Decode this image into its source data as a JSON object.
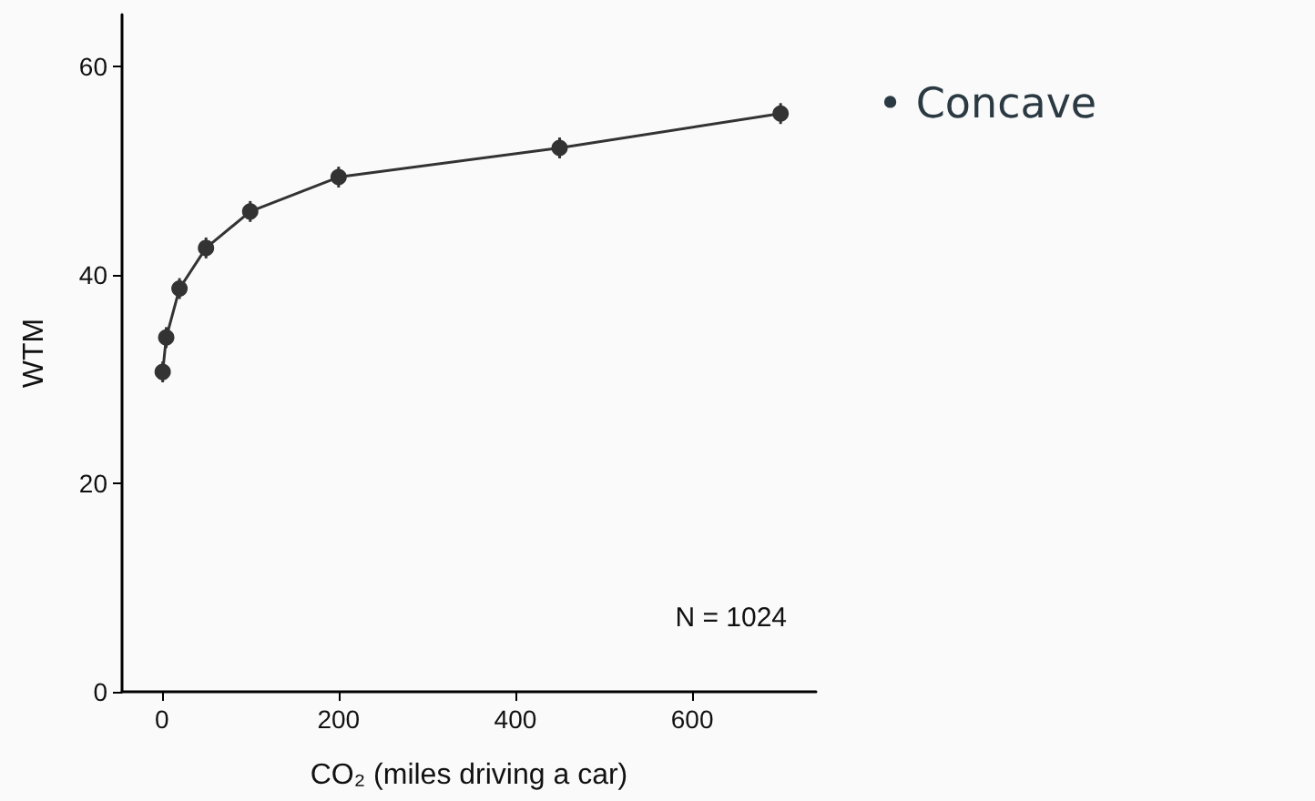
{
  "chart_data": {
    "type": "line",
    "xlabel": "CO₂ (miles driving a car)",
    "ylabel": "WTM",
    "x": [
      1,
      5,
      20,
      50,
      100,
      200,
      450,
      700
    ],
    "series": [
      {
        "color": "#333333",
        "values": [
          30.7,
          34.0,
          38.7,
          42.6,
          46.1,
          49.4,
          52.2,
          55.5
        ],
        "errors": [
          1,
          1,
          1,
          1,
          1,
          1,
          1,
          1
        ]
      }
    ],
    "xlim": [
      -45,
      740
    ],
    "xticks": [
      0,
      200,
      400,
      600
    ],
    "ylim": [
      0,
      65
    ],
    "yticks": [
      0,
      20,
      40,
      60
    ],
    "grid": false,
    "marker": "circle",
    "line_style": "solid",
    "annotations": [
      "N = 1024",
      "• Concave"
    ]
  }
}
